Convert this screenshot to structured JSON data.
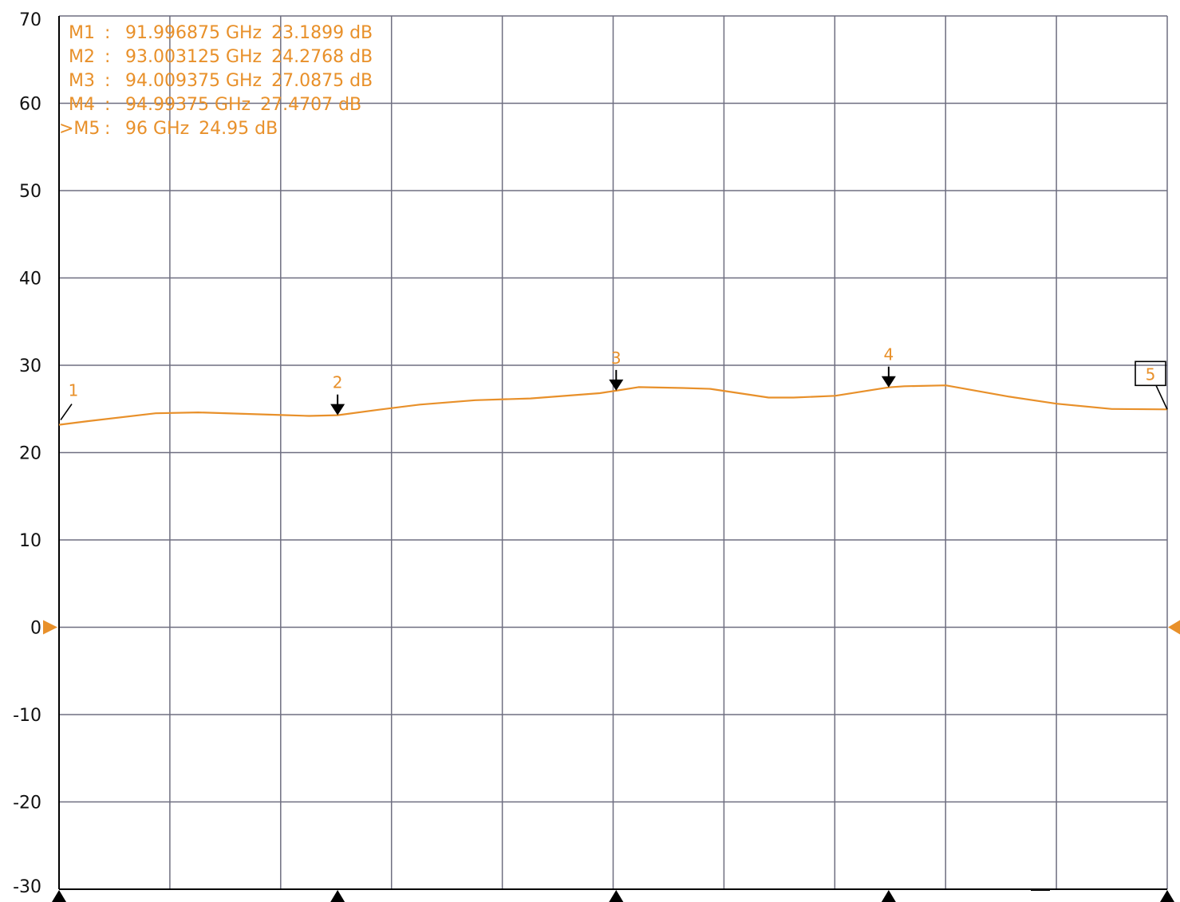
{
  "chart_data": {
    "type": "line",
    "title": "",
    "xlabel": "",
    "ylabel": "",
    "xlim": [
      91.996875,
      96.0
    ],
    "ylim": [
      -30,
      70
    ],
    "yticks": [
      70,
      60,
      50,
      40,
      30,
      20,
      10,
      0,
      -10,
      -20,
      -30
    ],
    "x_divisions": 10,
    "grid": true,
    "reference_level": 0,
    "colors": {
      "trace": "#E8902A",
      "grid": "#6E6E80",
      "axis": "#000000",
      "marker_arrow": "#000000"
    },
    "series": [
      {
        "x": [
          91.997,
          92.1,
          92.346,
          92.5,
          92.8,
          92.9,
          93.003,
          93.15,
          93.3,
          93.5,
          93.7,
          93.95,
          94.009,
          94.09,
          94.25,
          94.35,
          94.56,
          94.65,
          94.8,
          94.994,
          95.05,
          95.2,
          95.43,
          95.6,
          95.8,
          96.0
        ],
        "y": [
          23.19,
          23.6,
          24.5,
          24.6,
          24.3,
          24.2,
          24.28,
          24.9,
          25.5,
          26.0,
          26.2,
          26.8,
          27.09,
          27.5,
          27.4,
          27.3,
          26.3,
          26.3,
          26.5,
          27.47,
          27.6,
          27.7,
          26.4,
          25.6,
          25.0,
          24.95
        ]
      }
    ],
    "markers": [
      {
        "id": "1",
        "readout_name": "M1",
        "freq_text": "91.996875 GHz",
        "value_text": "23.1899  dB",
        "x": 91.996875,
        "y": 23.1899,
        "active": false,
        "style": "none"
      },
      {
        "id": "2",
        "readout_name": "M2",
        "freq_text": "93.003125 GHz",
        "value_text": "24.2768  dB",
        "x": 93.003125,
        "y": 24.2768,
        "active": false,
        "style": "arrow"
      },
      {
        "id": "3",
        "readout_name": "M3",
        "freq_text": "94.009375 GHz",
        "value_text": "27.0875  dB",
        "x": 94.009375,
        "y": 27.0875,
        "active": false,
        "style": "arrow"
      },
      {
        "id": "4",
        "readout_name": "M4",
        "freq_text": "94.99375 GHz",
        "value_text": "27.4707  dB",
        "x": 94.99375,
        "y": 27.4707,
        "active": false,
        "style": "arrow"
      },
      {
        "id": "5",
        "readout_name": ">M5",
        "freq_text": "96 GHz",
        "value_text": "24.95  dB",
        "x": 96.0,
        "y": 24.95,
        "active": true,
        "style": "box"
      }
    ],
    "readout_separator": ":"
  }
}
